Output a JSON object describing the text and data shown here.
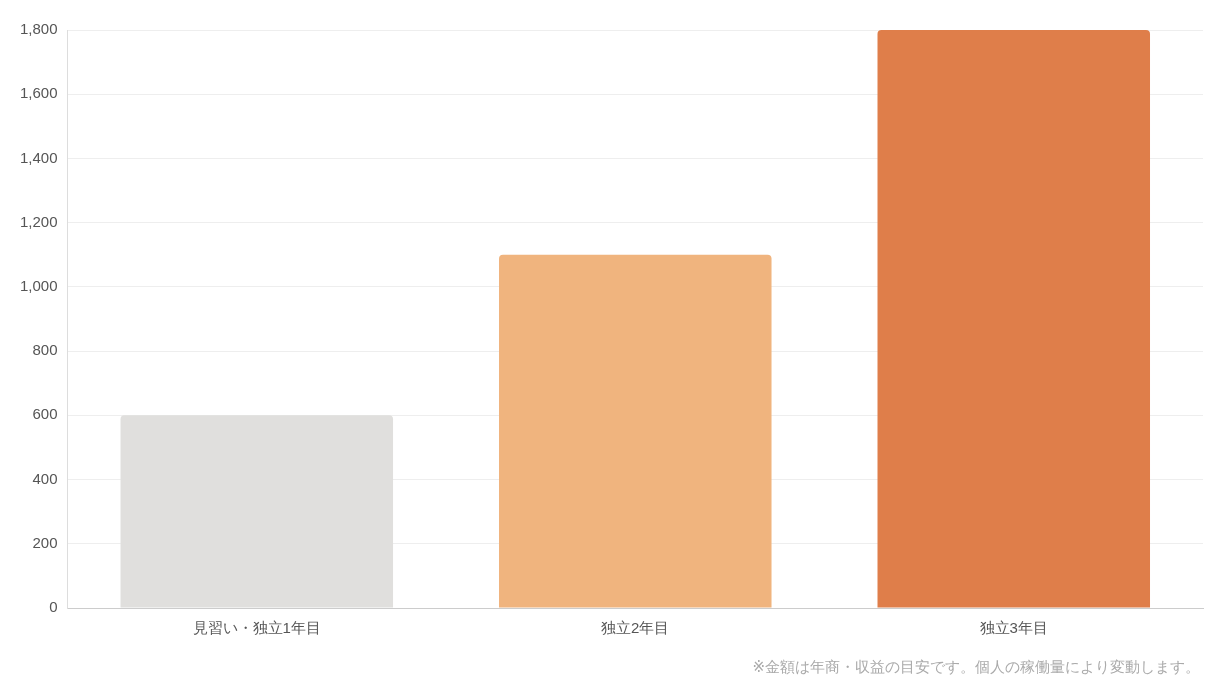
{
  "chart_data": {
    "type": "bar",
    "categories": [
      "見習い・独立1年目",
      "独立2年目",
      "独立3年目"
    ],
    "values": [
      600,
      1100,
      1800
    ],
    "colors": [
      "#e0dfdd",
      "#f0b47e",
      "#df7e4a"
    ],
    "ylim": [
      0,
      1800
    ],
    "yticks": [
      0,
      200,
      400,
      600,
      800,
      {
        "value": 1000,
        "label": "1,000"
      },
      {
        "value": 1200,
        "label": "1,200"
      },
      {
        "value": 1400,
        "label": "1,400"
      },
      {
        "value": 1600,
        "label": "1,600"
      },
      {
        "value": 1800,
        "label": "1,800"
      }
    ],
    "grid": "y",
    "legend": false,
    "annotations": [
      "※金額は年商・収益の目安です。個人の稼働量により変動します。"
    ]
  }
}
